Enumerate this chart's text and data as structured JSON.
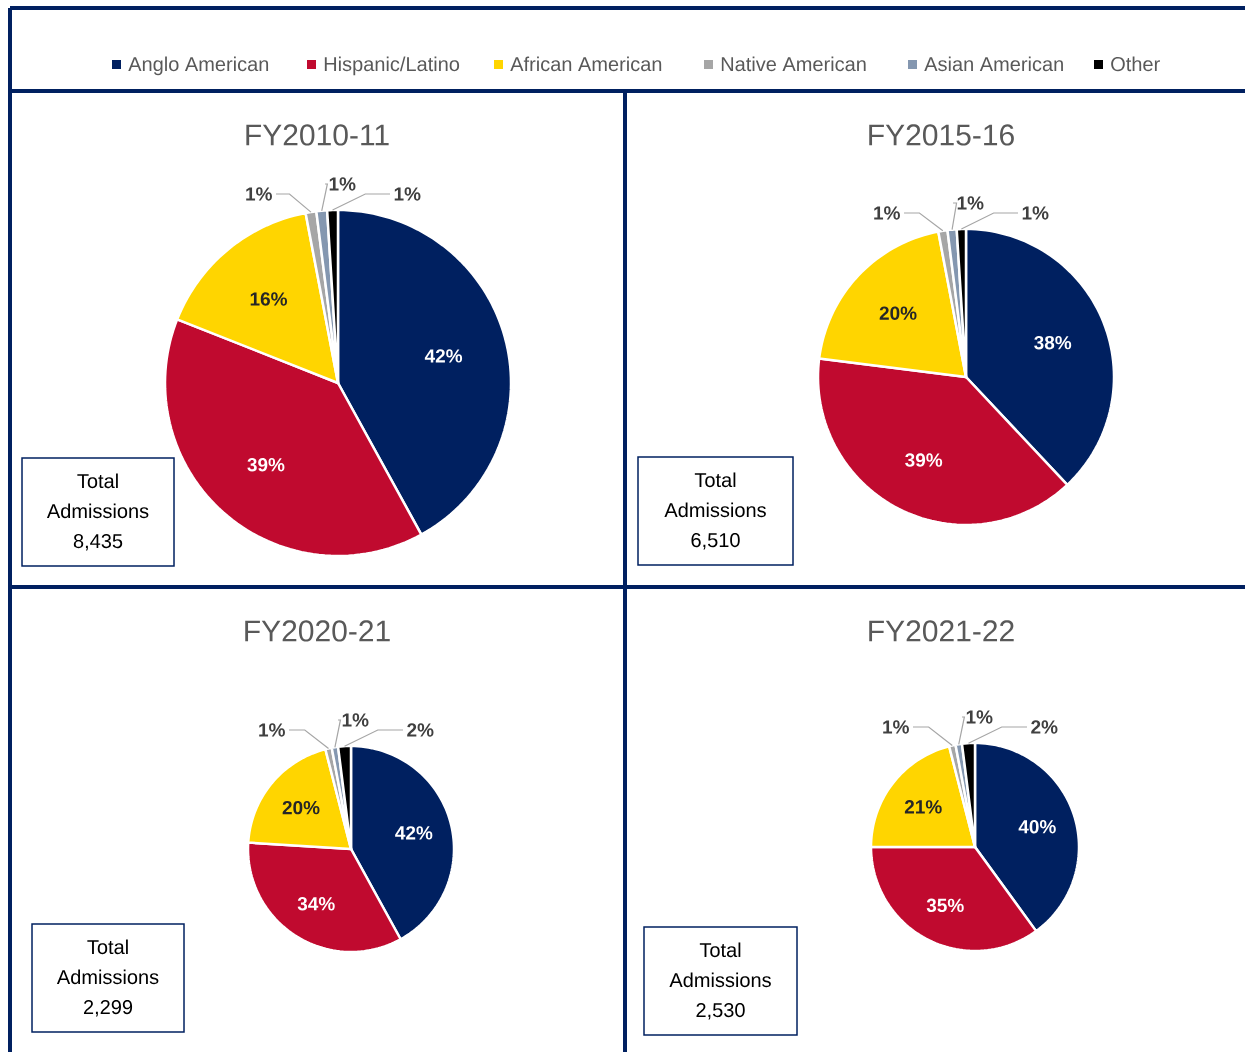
{
  "chart_data": [
    {
      "type": "pie",
      "title": "FY2010-11",
      "legend": "top",
      "categories": [
        "Anglo American",
        "Hispanic/Latino",
        "African American",
        "Native American",
        "Asian American",
        "Other"
      ],
      "values": [
        42,
        39,
        16,
        1,
        1,
        1
      ],
      "value_labels": [
        "42%",
        "39%",
        "16%",
        "1%",
        "1%",
        "1%"
      ],
      "colors": [
        "#002060",
        "#C00A2F",
        "#FFD500",
        "#A6A6A6",
        "#8497B0",
        "#000000"
      ],
      "annotations": [
        "Total Admissions 8,435"
      ]
    },
    {
      "type": "pie",
      "title": "FY2015-16",
      "categories": [
        null,
        null,
        null,
        null,
        null,
        null
      ],
      "values": [
        38,
        39,
        20,
        1,
        1,
        1
      ],
      "value_labels": [
        "38%",
        "39%",
        "20%",
        "1%",
        "1%",
        "1%"
      ],
      "colors": [
        "#002060",
        "#C00A2F",
        "#FFD500",
        "#A6A6A6",
        "#8497B0",
        "#000000"
      ],
      "annotations": [
        "Total Admissions 6,510"
      ]
    },
    {
      "type": "pie",
      "title": "FY2020-21",
      "categories": [
        null,
        null,
        null,
        null,
        null,
        null
      ],
      "values": [
        42,
        34,
        20,
        1,
        1,
        2
      ],
      "value_labels": [
        "42%",
        "34%",
        "20%",
        "1%",
        "1%",
        "2%"
      ],
      "colors": [
        "#002060",
        "#C00A2F",
        "#FFD500",
        "#A6A6A6",
        "#8497B0",
        "#000000"
      ],
      "annotations": [
        "Total Admissions 2,299"
      ]
    },
    {
      "type": "pie",
      "title": "FY2021-22",
      "categories": [
        null,
        null,
        null,
        null,
        null,
        null
      ],
      "values": [
        40,
        35,
        21,
        1,
        1,
        2
      ],
      "value_labels": [
        "40%",
        "35%",
        "21%",
        "1%",
        "1%",
        "2%"
      ],
      "colors": [
        "#002060",
        "#C00A2F",
        "#FFD500",
        "#A6A6A6",
        "#8497B0",
        "#000000"
      ],
      "annotations": [
        "Total Admissions 2,530"
      ]
    }
  ]
}
